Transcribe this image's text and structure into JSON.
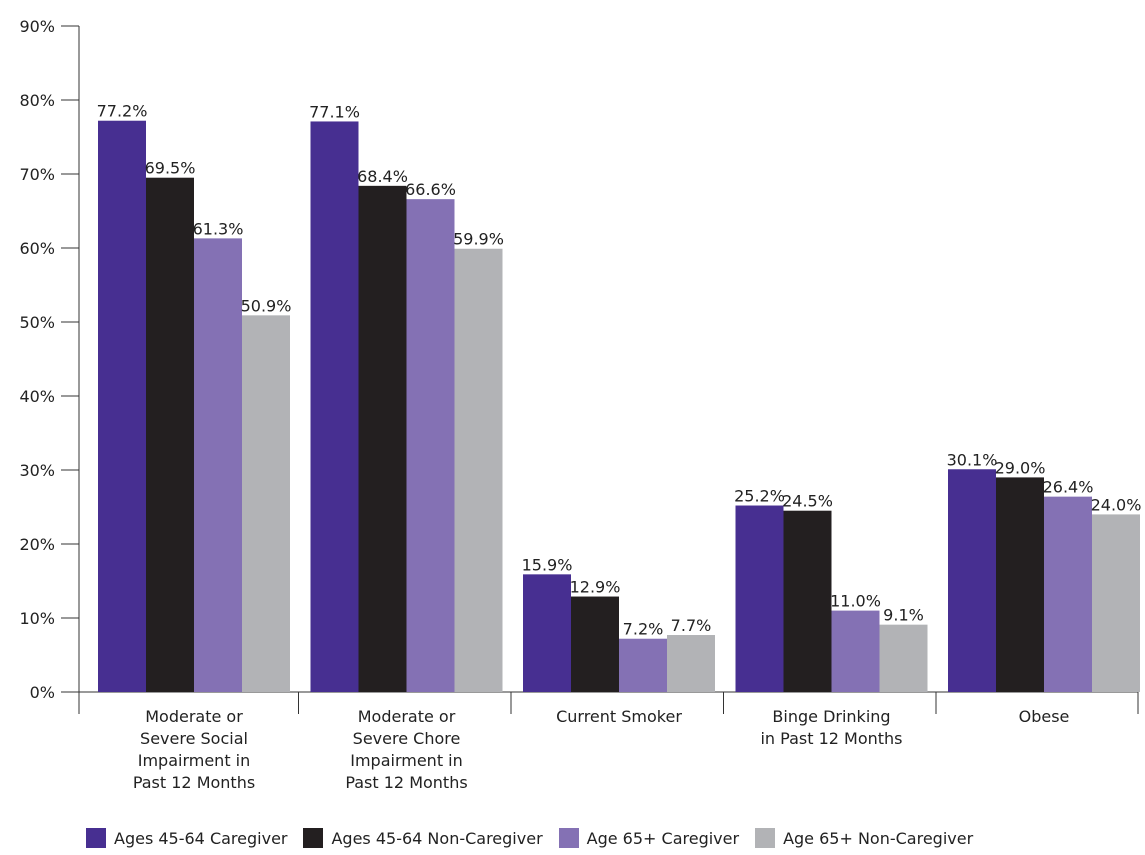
{
  "chart_data": {
    "type": "bar",
    "title": "",
    "xlabel": "",
    "ylabel": "",
    "ylim": [
      0,
      90
    ],
    "yticks": [
      "0%",
      "10%",
      "20%",
      "30%",
      "40%",
      "50%",
      "60%",
      "70%",
      "80%",
      "90%"
    ],
    "categories": [
      [
        "Moderate or",
        "Severe Social",
        "Impairment in",
        "Past 12 Months"
      ],
      [
        "Moderate or",
        "Severe Chore",
        "Impairment in",
        "Past 12 Months"
      ],
      [
        "Current Smoker"
      ],
      [
        "Binge Drinking",
        "in Past 12 Months"
      ],
      [
        "Obese"
      ]
    ],
    "series": [
      {
        "name": "Ages 45-64 Caregiver",
        "color": "#472f91",
        "values": [
          77.2,
          77.1,
          15.9,
          25.2,
          30.1
        ],
        "labels": [
          "77.2%",
          "77.1%",
          "15.9%",
          "25.2%",
          "30.1%"
        ]
      },
      {
        "name": "Ages 45-64 Non-Caregiver",
        "color": "#231f20",
        "values": [
          69.5,
          68.4,
          12.9,
          24.5,
          29.0
        ],
        "labels": [
          "69.5%",
          "68.4%",
          "12.9%",
          "24.5%",
          "29.0%"
        ]
      },
      {
        "name": "Age 65+ Caregiver",
        "color": "#8471b4",
        "values": [
          61.3,
          66.6,
          7.2,
          11.0,
          26.4
        ],
        "labels": [
          "61.3%",
          "66.6%",
          "7.2%",
          "11.0%",
          "26.4%"
        ]
      },
      {
        "name": "Age 65+ Non-Caregiver",
        "color": "#b2b3b6",
        "values": [
          50.9,
          59.9,
          7.7,
          9.1,
          24.0
        ],
        "labels": [
          "50.9%",
          "59.9%",
          "7.7%",
          "9.1%",
          "24.0%"
        ]
      }
    ],
    "legend_position": "bottom",
    "grid": false
  }
}
